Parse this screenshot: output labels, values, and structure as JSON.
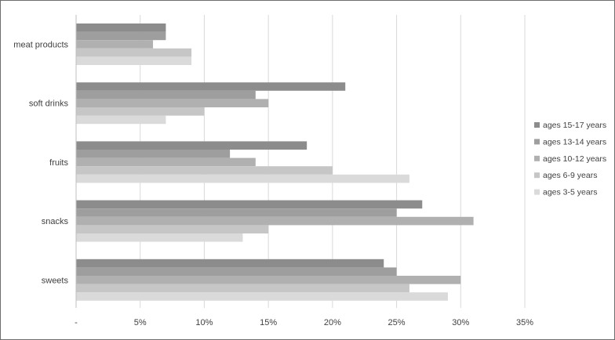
{
  "chart_data": {
    "type": "bar",
    "orientation": "horizontal",
    "title": "",
    "xlabel": "",
    "ylabel": "",
    "categories": [
      "meat products",
      "soft drinks",
      "fruits",
      "snacks",
      "sweets"
    ],
    "series": [
      {
        "name": "ages 15-17 years",
        "color": "#8c8c8c",
        "values": [
          7,
          21,
          18,
          27,
          24
        ]
      },
      {
        "name": "ages 13-14 years",
        "color": "#9e9e9e",
        "values": [
          7,
          14,
          12,
          25,
          25
        ]
      },
      {
        "name": "ages 10-12 years",
        "color": "#b0b0b0",
        "values": [
          6,
          15,
          14,
          31,
          30
        ]
      },
      {
        "name": "ages 6-9 years",
        "color": "#c6c6c6",
        "values": [
          9,
          10,
          20,
          15,
          26
        ]
      },
      {
        "name": "ages 3-5 years",
        "color": "#dadada",
        "values": [
          9,
          7,
          26,
          13,
          29
        ]
      }
    ],
    "xlim": [
      0,
      35
    ],
    "x_ticks": [
      0,
      5,
      10,
      15,
      20,
      25,
      30,
      35
    ],
    "x_tick_labels": [
      "-",
      "5%",
      "10%",
      "15%",
      "20%",
      "25%",
      "30%",
      "35%"
    ],
    "grid": "vertical",
    "legend_position": "right",
    "legend_order": [
      "ages 15-17 years",
      "ages 13-14 years",
      "ages 10-12 years",
      "ages 6-9 years",
      "ages 3-5 years"
    ]
  }
}
